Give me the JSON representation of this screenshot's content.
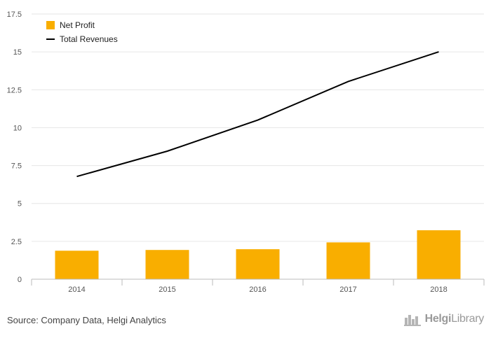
{
  "chart_data": {
    "type": "bar",
    "categories": [
      "2014",
      "2015",
      "2016",
      "2017",
      "2018"
    ],
    "series": [
      {
        "name": "Net Profit",
        "kind": "bar",
        "color": "#f9ae00",
        "values": [
          1.88,
          1.93,
          1.98,
          2.43,
          3.23
        ]
      },
      {
        "name": "Total Revenues",
        "kind": "line",
        "color": "#000000",
        "values": [
          6.78,
          8.45,
          10.5,
          13.05,
          15.0
        ]
      }
    ],
    "yticks": [
      0,
      2.5,
      5,
      7.5,
      10,
      12.5,
      15,
      17.5
    ],
    "ylim": [
      0,
      17.5
    ],
    "grid": true,
    "legend_position": "top-left"
  },
  "footer": {
    "source": "Source: Company Data, Helgi Analytics",
    "brand_part1": "Helgi",
    "brand_part2": "Library",
    "brand_icon": "buildings-icon"
  }
}
